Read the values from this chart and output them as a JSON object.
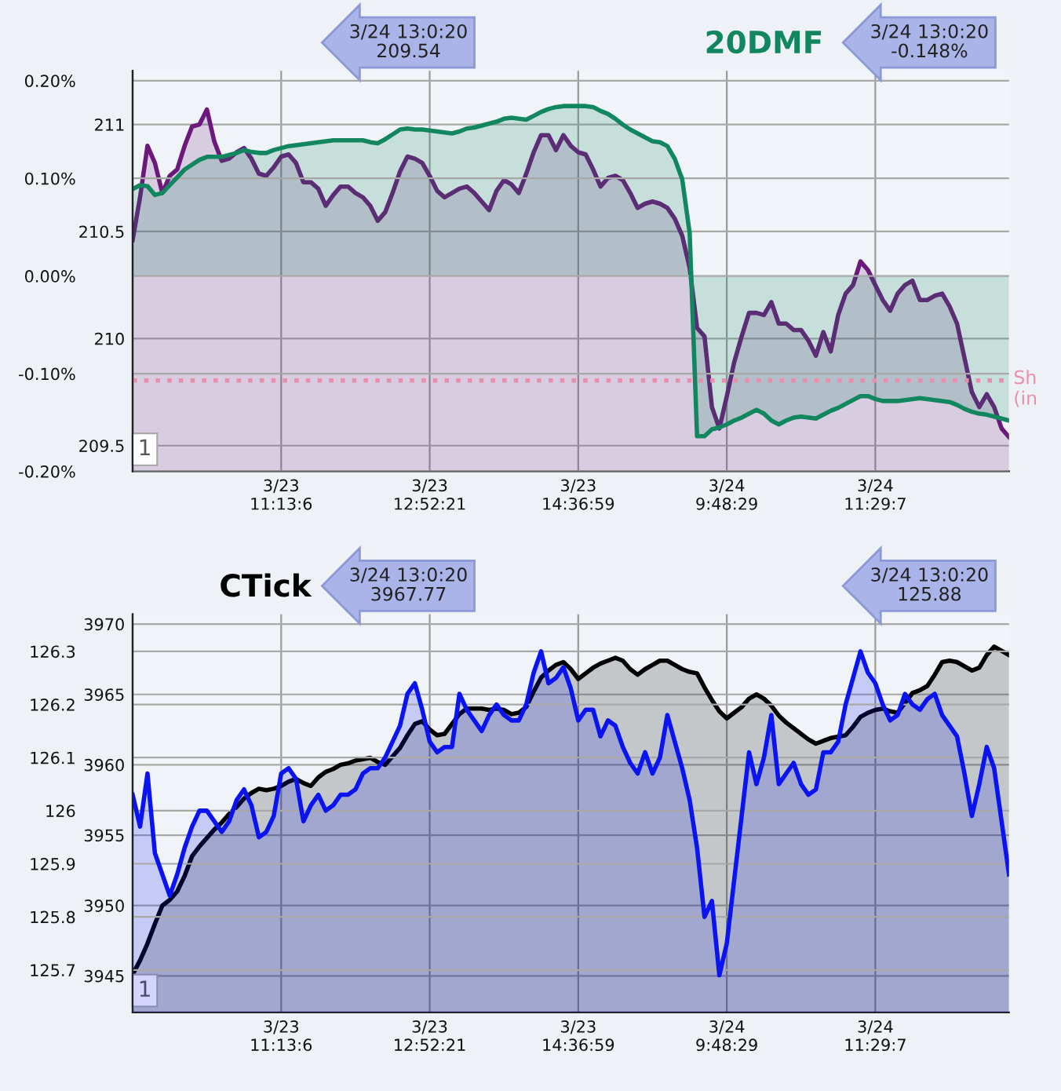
{
  "chart_data": [
    {
      "type": "area",
      "categories": [
        null,
        null,
        null,
        null,
        null,
        null,
        null,
        null,
        null,
        null,
        null,
        null,
        null,
        null,
        null,
        null,
        null,
        null,
        null,
        null,
        "3/23\n11:13:6",
        null,
        null,
        null,
        null,
        null,
        null,
        null,
        null,
        null,
        null,
        null,
        null,
        null,
        null,
        null,
        null,
        null,
        null,
        null,
        "3/23\n12:52:21",
        null,
        null,
        null,
        null,
        null,
        null,
        null,
        null,
        null,
        null,
        null,
        null,
        null,
        null,
        null,
        null,
        null,
        null,
        null,
        "3/23\n14:36:59",
        null,
        null,
        null,
        null,
        null,
        null,
        null,
        null,
        null,
        null,
        null,
        null,
        null,
        null,
        null,
        null,
        null,
        null,
        null,
        "3/24\n9:48:29",
        null,
        null,
        null,
        null,
        null,
        null,
        null,
        null,
        null,
        null,
        null,
        null,
        null,
        null,
        null,
        null,
        null,
        null,
        null,
        "3/24\n11:29:7",
        null,
        null,
        null,
        null,
        null,
        null,
        null,
        null,
        null,
        null,
        null,
        null,
        null,
        null,
        null,
        null,
        null,
        null
      ],
      "ylim": [
        209.38,
        211.25
      ],
      "yticks": [
        209.5,
        210,
        210.5,
        211
      ],
      "y2lim": [
        -0.2,
        0.21
      ],
      "y2ticks": [
        {
          "value": -0.2,
          "label": "-0.20%"
        },
        {
          "value": -0.1,
          "label": "-0.10%"
        },
        {
          "value": 0,
          "label": "0.00%"
        },
        {
          "value": 0.1,
          "label": "0.10%"
        },
        {
          "value": 0.2,
          "label": "0.20%"
        }
      ],
      "grid": true,
      "series": [
        {
          "color": "#6b1a7b",
          "axis": "y",
          "values": [
            210.46,
            210.66,
            210.9,
            210.82,
            210.68,
            210.76,
            210.79,
            210.9,
            210.99,
            211.0,
            211.07,
            210.92,
            210.83,
            210.84,
            210.87,
            210.89,
            210.84,
            210.77,
            210.76,
            210.8,
            210.85,
            210.86,
            210.82,
            210.73,
            210.73,
            210.7,
            210.62,
            210.67,
            210.71,
            210.71,
            210.68,
            210.66,
            210.62,
            210.55,
            210.59,
            210.68,
            210.78,
            210.85,
            210.84,
            210.82,
            210.76,
            210.69,
            210.66,
            210.68,
            210.7,
            210.71,
            210.68,
            210.64,
            210.6,
            210.69,
            210.74,
            210.72,
            210.68,
            210.77,
            210.87,
            210.95,
            210.95,
            210.88,
            210.95,
            210.9,
            210.87,
            210.86,
            210.79,
            210.71,
            210.75,
            210.76,
            210.74,
            210.68,
            210.61,
            210.63,
            210.64,
            210.63,
            210.61,
            210.56,
            210.48,
            210.33,
            210.05,
            210.01,
            209.68,
            209.58,
            209.73,
            209.89,
            210.01,
            210.12,
            210.12,
            210.11,
            210.17,
            210.07,
            210.07,
            210.04,
            210.04,
            209.99,
            209.92,
            210.03,
            209.94,
            210.11,
            210.21,
            210.25,
            210.36,
            210.32,
            210.25,
            210.18,
            210.13,
            210.21,
            210.25,
            210.27,
            210.18,
            210.18,
            210.2,
            210.21,
            210.15,
            210.07,
            209.91,
            209.75,
            209.68,
            209.74,
            209.68,
            209.58,
            209.54
          ]
        },
        {
          "name": "20DMF",
          "color": "#12875f",
          "axis": "y2",
          "values": [
            0.089,
            0.093,
            0.092,
            0.083,
            0.085,
            0.093,
            0.101,
            0.109,
            0.114,
            0.119,
            0.122,
            0.122,
            0.122,
            0.124,
            0.126,
            0.129,
            0.127,
            0.126,
            0.126,
            0.129,
            0.131,
            0.133,
            0.134,
            0.135,
            0.136,
            0.137,
            0.138,
            0.139,
            0.139,
            0.139,
            0.139,
            0.139,
            0.137,
            0.136,
            0.14,
            0.145,
            0.15,
            0.151,
            0.15,
            0.15,
            0.149,
            0.148,
            0.147,
            0.146,
            0.148,
            0.151,
            0.152,
            0.154,
            0.156,
            0.158,
            0.161,
            0.162,
            0.161,
            0.16,
            0.164,
            0.168,
            0.171,
            0.173,
            0.174,
            0.174,
            0.174,
            0.174,
            0.173,
            0.169,
            0.166,
            0.161,
            0.155,
            0.15,
            0.146,
            0.142,
            0.138,
            0.137,
            0.133,
            0.12,
            0.099,
            0.044,
            -0.164,
            -0.164,
            -0.157,
            -0.155,
            -0.152,
            -0.148,
            -0.145,
            -0.141,
            -0.137,
            -0.141,
            -0.148,
            -0.152,
            -0.148,
            -0.145,
            -0.144,
            -0.145,
            -0.146,
            -0.142,
            -0.138,
            -0.135,
            -0.131,
            -0.127,
            -0.123,
            -0.123,
            -0.126,
            -0.128,
            -0.128,
            -0.128,
            -0.127,
            -0.126,
            -0.125,
            -0.126,
            -0.127,
            -0.128,
            -0.129,
            -0.132,
            -0.136,
            -0.139,
            -0.141,
            -0.142,
            -0.144,
            -0.146,
            -0.148
          ]
        }
      ],
      "ref_lines": [
        {
          "axis": "y2",
          "value": -0.107,
          "label": "Sh\n(in",
          "color": "#e890ab",
          "line_style": "dotted"
        }
      ],
      "annotations": [
        "3/24 13:0:20\n209.54",
        "3/24 13:0:20\n-0.148%",
        "1"
      ]
    },
    {
      "type": "area",
      "categories": [
        null,
        null,
        null,
        null,
        null,
        null,
        null,
        null,
        null,
        null,
        null,
        null,
        null,
        null,
        null,
        null,
        null,
        null,
        null,
        null,
        "3/23\n11:13:6",
        null,
        null,
        null,
        null,
        null,
        null,
        null,
        null,
        null,
        null,
        null,
        null,
        null,
        null,
        null,
        null,
        null,
        null,
        null,
        "3/23\n12:52:21",
        null,
        null,
        null,
        null,
        null,
        null,
        null,
        null,
        null,
        null,
        null,
        null,
        null,
        null,
        null,
        null,
        null,
        null,
        null,
        "3/23\n14:36:59",
        null,
        null,
        null,
        null,
        null,
        null,
        null,
        null,
        null,
        null,
        null,
        null,
        null,
        null,
        null,
        null,
        null,
        null,
        null,
        "3/24\n9:48:29",
        null,
        null,
        null,
        null,
        null,
        null,
        null,
        null,
        null,
        null,
        null,
        null,
        null,
        null,
        null,
        null,
        null,
        null,
        null,
        "3/24\n11:29:7",
        null,
        null,
        null,
        null,
        null,
        null,
        null,
        null,
        null,
        null,
        null,
        null,
        null,
        null,
        null,
        null,
        null,
        null
      ],
      "ylim": [
        3942.4,
        3970.7
      ],
      "yticks": [
        3945,
        3950,
        3955,
        3960,
        3965,
        3970
      ],
      "y2lim": [
        125.62,
        126.37
      ],
      "y2ticks": [
        125.7,
        125.8,
        125.9,
        126,
        126.1,
        126.2,
        126.3
      ],
      "grid": true,
      "series": [
        {
          "name": "CTick",
          "color": "#000000",
          "axis": "y",
          "values": [
            3945.1,
            3946.1,
            3947.3,
            3948.7,
            3950.0,
            3950.4,
            3951.0,
            3952.1,
            3953.5,
            3954.2,
            3954.8,
            3955.4,
            3955.9,
            3956.5,
            3957.0,
            3957.6,
            3958.0,
            3958.3,
            3958.2,
            3958.3,
            3958.5,
            3958.8,
            3959.0,
            3958.7,
            3958.5,
            3959.1,
            3959.5,
            3959.7,
            3960.0,
            3960.1,
            3960.3,
            3960.4,
            3960.5,
            3960.2,
            3960.0,
            3960.6,
            3961.2,
            3962.1,
            3962.9,
            3963.1,
            3962.5,
            3962.1,
            3962.2,
            3962.9,
            3963.6,
            3964.0,
            3964.0,
            3964.0,
            3963.9,
            3964.0,
            3963.9,
            3963.6,
            3963.7,
            3964.1,
            3965.2,
            3966.2,
            3966.7,
            3967.1,
            3967.3,
            3966.8,
            3966.1,
            3966.5,
            3966.9,
            3967.2,
            3967.4,
            3967.6,
            3967.4,
            3966.8,
            3966.4,
            3966.8,
            3967.1,
            3967.4,
            3967.4,
            3967.1,
            3966.8,
            3966.6,
            3966.5,
            3965.5,
            3964.6,
            3963.8,
            3963.3,
            3963.7,
            3964.1,
            3964.7,
            3965.0,
            3964.7,
            3964.2,
            3963.5,
            3963.0,
            3962.6,
            3962.2,
            3961.8,
            3961.5,
            3961.7,
            3961.9,
            3962.0,
            3962.1,
            3962.7,
            3963.4,
            3963.7,
            3963.9,
            3964.0,
            3963.8,
            3963.7,
            3964.4,
            3965.1,
            3965.3,
            3965.6,
            3966.4,
            3967.3,
            3967.4,
            3967.3,
            3967.0,
            3966.7,
            3966.9,
            3967.8,
            3968.4,
            3968.1,
            3967.8
          ]
        },
        {
          "color": "#0a14f0",
          "axis": "y2",
          "values": [
            126.03,
            125.97,
            126.07,
            125.92,
            125.88,
            125.84,
            125.88,
            125.93,
            125.97,
            126.0,
            126.0,
            125.98,
            125.96,
            125.98,
            126.02,
            126.04,
            126.01,
            125.95,
            125.96,
            125.99,
            126.07,
            126.08,
            126.06,
            125.98,
            126.01,
            126.03,
            126.0,
            126.01,
            126.03,
            126.03,
            126.04,
            126.07,
            126.08,
            126.08,
            126.1,
            126.13,
            126.16,
            126.22,
            126.24,
            126.19,
            126.13,
            126.11,
            126.12,
            126.12,
            126.22,
            126.19,
            126.17,
            126.15,
            126.18,
            126.2,
            126.18,
            126.17,
            126.17,
            126.2,
            126.26,
            126.3,
            126.24,
            126.25,
            126.27,
            126.23,
            126.17,
            126.19,
            126.19,
            126.14,
            126.17,
            126.16,
            126.12,
            126.09,
            126.07,
            126.11,
            126.07,
            126.1,
            126.18,
            126.13,
            126.08,
            126.02,
            125.93,
            125.8,
            125.83,
            125.69,
            125.75,
            125.87,
            125.99,
            126.11,
            126.05,
            126.1,
            126.18,
            126.05,
            126.07,
            126.09,
            126.05,
            126.03,
            126.04,
            126.11,
            126.11,
            126.13,
            126.2,
            126.25,
            126.3,
            126.26,
            126.24,
            126.2,
            126.17,
            126.18,
            126.22,
            126.2,
            126.19,
            126.21,
            126.22,
            126.18,
            126.16,
            126.14,
            126.07,
            125.99,
            126.05,
            126.12,
            126.08,
            125.98,
            125.88
          ]
        }
      ],
      "annotations": [
        "3/24 13:0:20\n3967.77",
        "3/24 13:0:20\n125.88",
        "1"
      ]
    }
  ]
}
